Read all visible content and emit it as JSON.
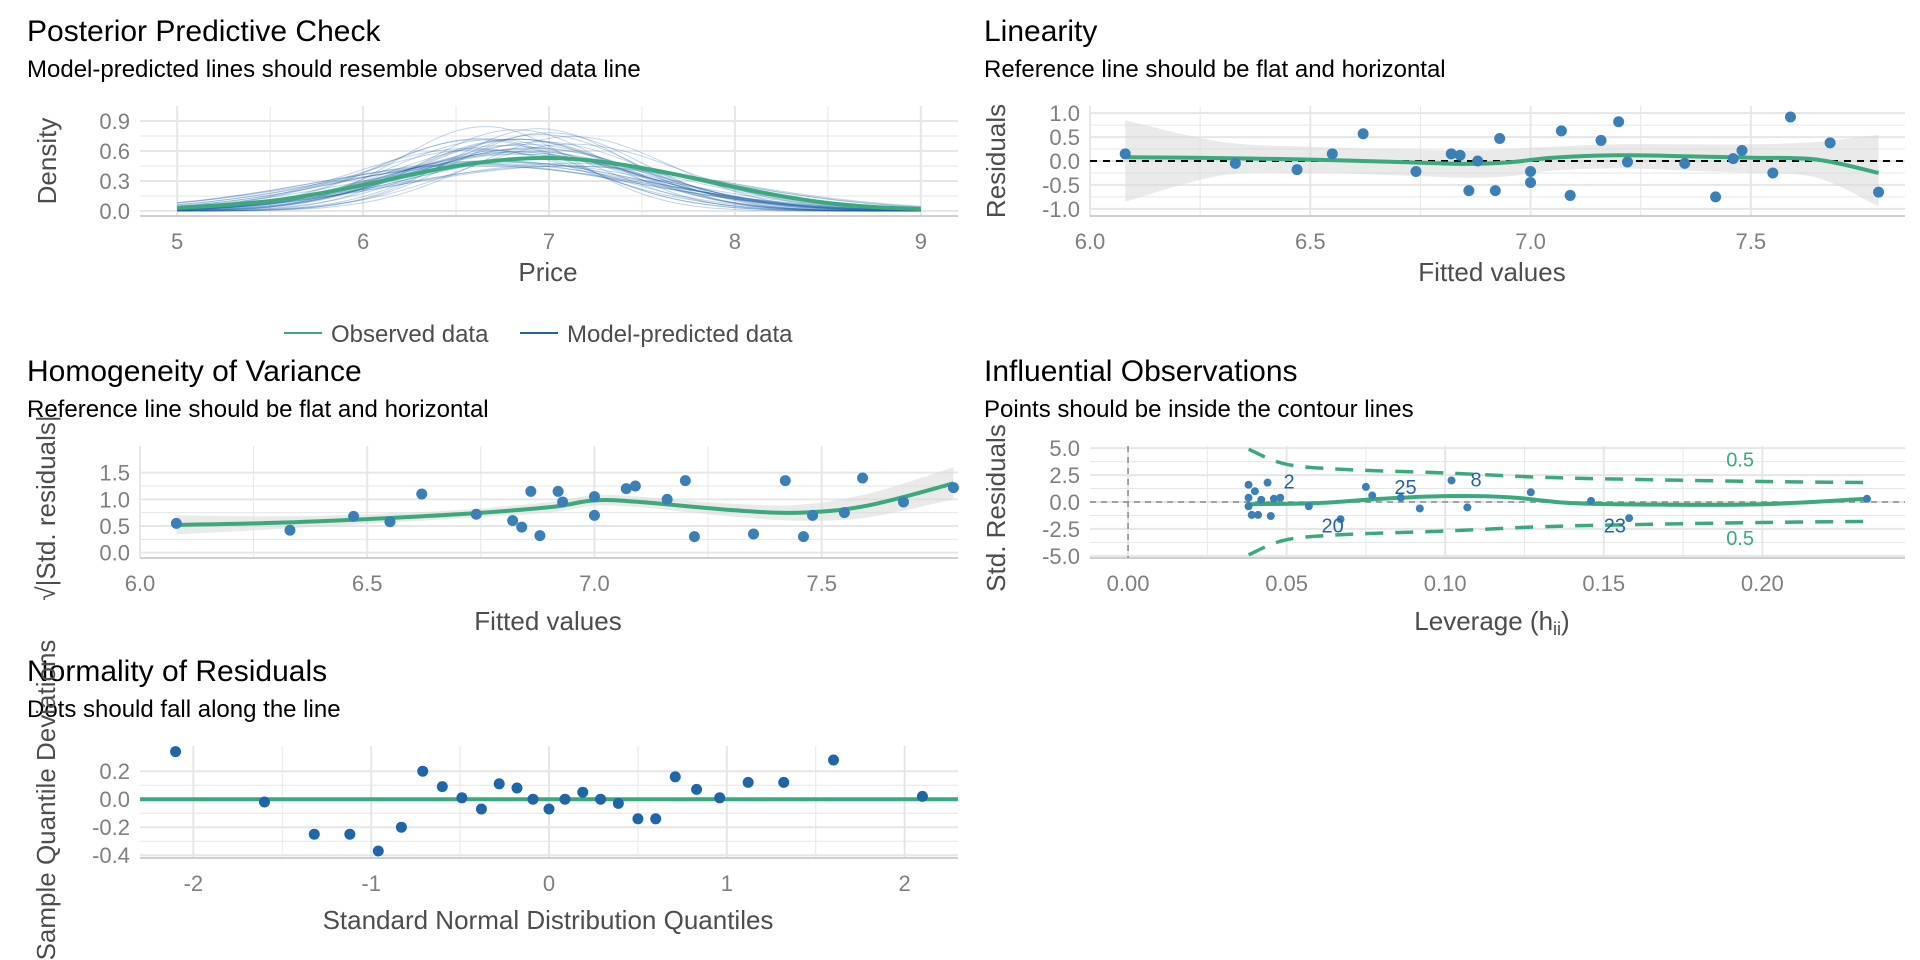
{
  "colors": {
    "green": "#3aaa7c",
    "blue": "#1f66a8",
    "point": "#3b7fb7",
    "band": "#d9d9d9",
    "grid": "#e6e6e6",
    "text": "#4d4d4d",
    "tick": "#7f7f7f"
  },
  "chart_data": [
    {
      "id": "ppc",
      "type": "line",
      "title": "Posterior Predictive Check",
      "subtitle": "Model-predicted lines should resemble observed data line",
      "xlabel": "Price",
      "ylabel": "Density",
      "xlim": [
        4.8,
        9.2
      ],
      "ylim": [
        -0.05,
        1.05
      ],
      "xticks": [
        5,
        6,
        7,
        8,
        9
      ],
      "xtick_labels": [
        "5",
        "6",
        "7",
        "8",
        "9"
      ],
      "yticks": [
        0.0,
        0.3,
        0.6,
        0.9
      ],
      "ytick_labels": [
        "0.0",
        "0.3",
        "0.6",
        "0.9"
      ],
      "grid": true,
      "legend_position": "bottom",
      "legend": [
        {
          "label": "Observed data",
          "color": "#3aaa7c"
        },
        {
          "label": "Model-predicted data",
          "color": "#1f66a8"
        }
      ],
      "observed": {
        "x": [
          5.0,
          5.25,
          5.5,
          5.75,
          6.0,
          6.25,
          6.5,
          6.75,
          7.0,
          7.25,
          7.5,
          7.75,
          8.0,
          8.25,
          8.5,
          8.75,
          9.0
        ],
        "y": [
          0.03,
          0.06,
          0.1,
          0.17,
          0.26,
          0.36,
          0.45,
          0.51,
          0.53,
          0.5,
          0.43,
          0.34,
          0.24,
          0.15,
          0.08,
          0.04,
          0.02
        ]
      },
      "predicted_draws": 40
    },
    {
      "id": "linearity",
      "type": "scatter",
      "title": "Linearity",
      "subtitle": "Reference line should be flat and horizontal",
      "xlabel": "Fitted values",
      "ylabel": "Residuals",
      "xlim": [
        6.0,
        7.85
      ],
      "ylim": [
        -1.15,
        1.15
      ],
      "xticks": [
        6.0,
        6.5,
        7.0,
        7.5
      ],
      "xtick_labels": [
        "6.0",
        "6.5",
        "7.0",
        "7.5"
      ],
      "yticks": [
        -1.0,
        -0.5,
        0.0,
        0.5,
        1.0
      ],
      "ytick_labels": [
        "-1.0",
        "-0.5",
        "0.0",
        "0.5",
        "1.0"
      ],
      "grid": true,
      "points": {
        "x": [
          6.08,
          6.33,
          6.47,
          6.55,
          6.62,
          6.74,
          6.82,
          6.84,
          6.86,
          6.88,
          6.92,
          6.93,
          7.0,
          7.0,
          7.07,
          7.09,
          7.16,
          7.2,
          7.22,
          7.35,
          7.42,
          7.46,
          7.48,
          7.55,
          7.59,
          7.68,
          7.79
        ],
        "y": [
          0.15,
          -0.05,
          -0.18,
          0.15,
          0.57,
          -0.22,
          0.15,
          0.12,
          -0.62,
          0.0,
          -0.62,
          0.47,
          -0.45,
          -0.22,
          0.63,
          -0.72,
          0.43,
          0.82,
          -0.02,
          -0.05,
          -0.75,
          0.05,
          0.22,
          -0.25,
          0.92,
          0.38,
          -0.65
        ]
      },
      "smooth": {
        "x": [
          6.08,
          6.3,
          6.5,
          6.7,
          6.85,
          6.95,
          7.05,
          7.2,
          7.35,
          7.5,
          7.65,
          7.79
        ],
        "y": [
          0.08,
          0.06,
          0.03,
          -0.02,
          -0.06,
          -0.03,
          0.07,
          0.12,
          0.1,
          0.07,
          0.03,
          -0.25
        ],
        "band_upper": [
          0.85,
          0.4,
          0.3,
          0.25,
          0.22,
          0.25,
          0.3,
          0.35,
          0.35,
          0.35,
          0.4,
          0.55
        ],
        "band_lower": [
          -0.85,
          -0.3,
          -0.25,
          -0.3,
          -0.35,
          -0.32,
          -0.2,
          -0.15,
          -0.2,
          -0.25,
          -0.35,
          -0.95
        ]
      },
      "reference_y": 0
    },
    {
      "id": "homogeneity",
      "type": "scatter",
      "title": "Homogeneity of Variance",
      "subtitle": "Reference line should be flat and horizontal",
      "xlabel": "Fitted values",
      "ylabel": "√|Std. residuals|",
      "xlim": [
        6.0,
        7.8
      ],
      "ylim": [
        -0.1,
        2.0
      ],
      "xticks": [
        6.0,
        6.5,
        7.0,
        7.5
      ],
      "xtick_labels": [
        "6.0",
        "6.5",
        "7.0",
        "7.5"
      ],
      "yticks": [
        0.0,
        0.5,
        1.0,
        1.5
      ],
      "ytick_labels": [
        "0.0",
        "0.5",
        "1.0",
        "1.5"
      ],
      "grid": true,
      "points": {
        "x": [
          6.08,
          6.33,
          6.47,
          6.55,
          6.62,
          6.74,
          6.82,
          6.84,
          6.86,
          6.88,
          6.92,
          6.93,
          7.0,
          7.0,
          7.07,
          7.09,
          7.16,
          7.2,
          7.22,
          7.35,
          7.42,
          7.46,
          7.48,
          7.55,
          7.59,
          7.68,
          7.79
        ],
        "y": [
          0.55,
          0.42,
          0.68,
          0.58,
          1.1,
          0.72,
          0.6,
          0.48,
          1.15,
          0.32,
          1.15,
          0.95,
          1.05,
          0.7,
          1.2,
          1.25,
          1.0,
          1.35,
          0.3,
          0.35,
          1.35,
          0.3,
          0.7,
          0.75,
          1.4,
          0.95,
          1.22
        ]
      },
      "smooth": {
        "x": [
          6.08,
          6.3,
          6.5,
          6.7,
          6.9,
          7.0,
          7.1,
          7.3,
          7.45,
          7.6,
          7.79
        ],
        "y": [
          0.52,
          0.56,
          0.63,
          0.72,
          0.85,
          0.98,
          0.95,
          0.8,
          0.75,
          0.88,
          1.3
        ],
        "band_upper": [
          0.7,
          0.68,
          0.72,
          0.8,
          0.95,
          1.08,
          1.05,
          0.92,
          0.9,
          1.1,
          1.6
        ],
        "band_lower": [
          0.34,
          0.44,
          0.54,
          0.64,
          0.75,
          0.88,
          0.85,
          0.68,
          0.6,
          0.66,
          1.0
        ]
      }
    },
    {
      "id": "influential",
      "type": "scatter",
      "title": "Influential Observations",
      "subtitle": "Points should be inside the contour lines",
      "xlabel": "Leverage (h",
      "xlabel_sub": "ii",
      "xlabel_suffix": ")",
      "ylabel": "Std. Residuals",
      "xlim": [
        -0.012,
        0.245
      ],
      "ylim": [
        -5.2,
        5.2
      ],
      "xticks": [
        0.0,
        0.05,
        0.1,
        0.15,
        0.2
      ],
      "xtick_labels": [
        "0.00",
        "0.05",
        "0.10",
        "0.15",
        "0.20"
      ],
      "yticks": [
        -5.0,
        -2.5,
        0.0,
        2.5,
        5.0
      ],
      "ytick_labels": [
        "-5.0",
        "-2.5",
        "0.0",
        "2.5",
        "5.0"
      ],
      "grid": true,
      "points": {
        "x": [
          0.038,
          0.038,
          0.038,
          0.039,
          0.04,
          0.041,
          0.042,
          0.044,
          0.045,
          0.046,
          0.048,
          0.057,
          0.067,
          0.075,
          0.077,
          0.086,
          0.092,
          0.102,
          0.107,
          0.127,
          0.146,
          0.158,
          0.233
        ],
        "y": [
          1.6,
          0.4,
          -0.4,
          -1.2,
          1.0,
          -1.2,
          0.2,
          1.8,
          -1.3,
          0.3,
          0.4,
          -0.4,
          -1.6,
          1.4,
          0.6,
          0.4,
          -0.6,
          2.0,
          -0.5,
          0.9,
          0.1,
          -1.5,
          0.3
        ]
      },
      "labels": [
        {
          "text": "2",
          "x": 0.049,
          "y": 1.9
        },
        {
          "text": "25",
          "x": 0.084,
          "y": 1.4
        },
        {
          "text": "8",
          "x": 0.108,
          "y": 2.1
        },
        {
          "text": "20",
          "x": 0.061,
          "y": -2.2
        },
        {
          "text": "23",
          "x": 0.15,
          "y": -2.2
        }
      ],
      "smooth": {
        "x": [
          0.038,
          0.06,
          0.08,
          0.1,
          0.12,
          0.14,
          0.17,
          0.2,
          0.233
        ],
        "y": [
          -0.2,
          -0.1,
          0.3,
          0.55,
          0.45,
          -0.1,
          -0.25,
          -0.2,
          0.3
        ]
      },
      "contours": {
        "level": "0.5",
        "x": [
          0.038,
          0.05,
          0.07,
          0.1,
          0.13,
          0.16,
          0.2,
          0.233
        ],
        "upper": [
          4.9,
          3.5,
          3.0,
          2.7,
          2.3,
          2.1,
          1.9,
          1.8
        ],
        "lower": [
          -4.9,
          -3.5,
          -3.0,
          -2.7,
          -2.3,
          -2.1,
          -1.9,
          -1.8
        ]
      }
    },
    {
      "id": "normality",
      "type": "scatter",
      "title": "Normality of Residuals",
      "subtitle": "Dots should fall along the line",
      "xlabel": "Standard Normal Distribution Quantiles",
      "ylabel": "Sample Quantile Deviations",
      "xlim": [
        -2.3,
        2.3
      ],
      "ylim": [
        -0.42,
        0.38
      ],
      "xticks": [
        -2,
        -1,
        0,
        1,
        2
      ],
      "xtick_labels": [
        "-2",
        "-1",
        "0",
        "1",
        "2"
      ],
      "yticks": [
        -0.4,
        -0.2,
        0.0,
        0.2
      ],
      "ytick_labels": [
        "-0.4",
        "-0.2",
        "0.0",
        "0.2"
      ],
      "grid": true,
      "points": {
        "x": [
          -2.1,
          -1.6,
          -1.32,
          -1.12,
          -0.96,
          -0.83,
          -0.71,
          -0.6,
          -0.49,
          -0.38,
          -0.28,
          -0.18,
          -0.09,
          0.0,
          0.09,
          0.19,
          0.29,
          0.39,
          0.5,
          0.6,
          0.71,
          0.83,
          0.96,
          1.12,
          1.32,
          1.6,
          2.1
        ],
        "y": [
          0.34,
          -0.02,
          -0.25,
          -0.25,
          -0.37,
          -0.2,
          0.2,
          0.09,
          0.01,
          -0.07,
          0.11,
          0.08,
          0.0,
          -0.07,
          0.0,
          0.05,
          0.0,
          -0.03,
          -0.14,
          -0.14,
          0.16,
          0.07,
          0.01,
          0.12,
          0.12,
          0.28,
          0.02
        ]
      },
      "reference_y": 0
    }
  ]
}
